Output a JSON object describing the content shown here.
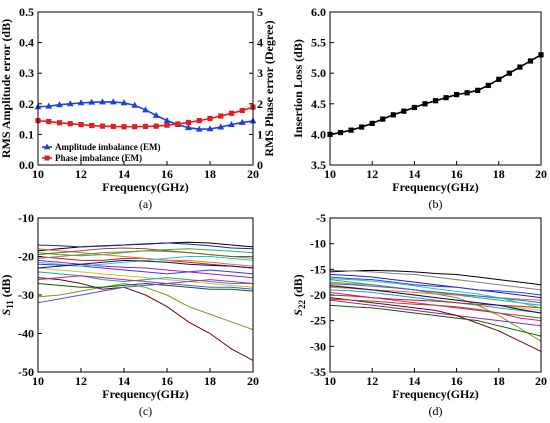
{
  "chart_data": [
    {
      "id": "a",
      "type": "line",
      "caption": "(a)",
      "xlabel": "Frequency(GHz)",
      "ylabel": "RMS Amplitude error (dB)",
      "y2label": "RMS Phase error (Degree)",
      "xlim": [
        10,
        20
      ],
      "ylim": [
        0,
        0.5
      ],
      "y2lim": [
        0,
        5
      ],
      "xticks": [
        10,
        12,
        14,
        16,
        18,
        20
      ],
      "yticks": [
        0.0,
        0.1,
        0.2,
        0.3,
        0.4,
        0.5
      ],
      "ytick_labels": [
        "0.0",
        "0.1",
        "0.2",
        "0.3",
        "0.4",
        "0.5"
      ],
      "y2ticks": [
        0,
        1,
        2,
        3,
        4,
        5
      ],
      "y2tick_labels": [
        "0",
        "1",
        "2",
        "3",
        "4",
        "5"
      ],
      "legend": "bottom-left",
      "grid": false,
      "series": [
        {
          "name": "Amplitude imbalance (EM)",
          "axis": "left",
          "color": "#1f3fe0",
          "marker": "triangle",
          "x": [
            10,
            10.5,
            11,
            11.5,
            12,
            12.5,
            13,
            13.5,
            14,
            14.5,
            15,
            15.5,
            16,
            16.5,
            17,
            17.5,
            18,
            18.5,
            19,
            19.5,
            20
          ],
          "y": [
            0.19,
            0.192,
            0.197,
            0.2,
            0.203,
            0.205,
            0.206,
            0.206,
            0.203,
            0.195,
            0.18,
            0.162,
            0.145,
            0.132,
            0.122,
            0.117,
            0.118,
            0.124,
            0.132,
            0.139,
            0.144
          ]
        },
        {
          "name": "Phase imbalance (EM)",
          "axis": "right",
          "color": "#e01f1f",
          "marker": "square",
          "x": [
            10,
            10.5,
            11,
            11.5,
            12,
            12.5,
            13,
            13.5,
            14,
            14.5,
            15,
            15.5,
            16,
            16.5,
            17,
            17.5,
            18,
            18.5,
            19,
            19.5,
            20
          ],
          "y": [
            1.45,
            1.42,
            1.38,
            1.35,
            1.32,
            1.29,
            1.27,
            1.26,
            1.25,
            1.25,
            1.26,
            1.27,
            1.3,
            1.34,
            1.39,
            1.45,
            1.52,
            1.6,
            1.69,
            1.78,
            1.89
          ]
        }
      ]
    },
    {
      "id": "b",
      "type": "line",
      "caption": "(b)",
      "xlabel": "Frequency(GHz)",
      "ylabel": "Insertion Loss (dB)",
      "xlim": [
        10,
        20
      ],
      "ylim": [
        3.5,
        6.0
      ],
      "xticks": [
        10,
        12,
        14,
        16,
        18,
        20
      ],
      "yticks": [
        3.5,
        4.0,
        4.5,
        5.0,
        5.5,
        6.0
      ],
      "ytick_labels": [
        "3.5",
        "4.0",
        "4.5",
        "5.0",
        "5.5",
        "6.0"
      ],
      "grid": false,
      "series": [
        {
          "color": "#000000",
          "marker": "square",
          "x": [
            10,
            10.5,
            11,
            11.5,
            12,
            12.5,
            13,
            13.5,
            14,
            14.5,
            15,
            15.5,
            16,
            16.5,
            17,
            17.5,
            18,
            18.5,
            19,
            19.5,
            20
          ],
          "y": [
            4.0,
            4.03,
            4.07,
            4.12,
            4.18,
            4.25,
            4.32,
            4.38,
            4.44,
            4.5,
            4.55,
            4.6,
            4.65,
            4.68,
            4.72,
            4.8,
            4.9,
            5.0,
            5.1,
            5.2,
            5.3
          ]
        }
      ]
    },
    {
      "id": "c",
      "type": "line",
      "caption": "(c)",
      "xlabel": "Frequency(GHz)",
      "ylabel_main": "S",
      "ylabel_sub": "11",
      "ylabel_unit": " (dB)",
      "xlim": [
        10,
        20
      ],
      "ylim": [
        -50,
        -10
      ],
      "xticks": [
        10,
        12,
        14,
        16,
        18,
        20
      ],
      "yticks": [
        -50,
        -40,
        -30,
        -20,
        -10
      ],
      "ytick_labels": [
        "-50",
        "-40",
        "-30",
        "-20",
        "-10"
      ],
      "grid": false,
      "x": [
        10,
        11,
        12,
        13,
        14,
        15,
        16,
        17,
        18,
        19,
        20
      ],
      "series": [
        {
          "color": "#000000",
          "values": [
            -18.5,
            -18,
            -17.5,
            -17.2,
            -17,
            -16.8,
            -16.5,
            -16.3,
            -16.5,
            -17,
            -17.5
          ]
        },
        {
          "color": "#1e22a8",
          "values": [
            -17,
            -17.2,
            -17.5,
            -17.3,
            -17,
            -16.7,
            -16.5,
            -16.8,
            -17.2,
            -17.8,
            -18
          ]
        },
        {
          "color": "#2db34a",
          "values": [
            -19,
            -19.5,
            -19.8,
            -19.5,
            -19,
            -18.5,
            -18.2,
            -18,
            -18.3,
            -18.6,
            -19
          ]
        },
        {
          "color": "#9a1fb5",
          "values": [
            -21,
            -21.5,
            -22,
            -22.5,
            -22.8,
            -23,
            -23.5,
            -24,
            -24.5,
            -25,
            -25.5
          ]
        },
        {
          "color": "#c8c81e",
          "values": [
            -23,
            -23.5,
            -24,
            -24.5,
            -25,
            -25.5,
            -26,
            -26.5,
            -27,
            -27.5,
            -28
          ]
        },
        {
          "color": "#1fa0b0",
          "values": [
            -24,
            -24.5,
            -25,
            -26,
            -26.5,
            -26,
            -25.5,
            -26,
            -26.5,
            -27,
            -27
          ]
        },
        {
          "color": "#c81e1e",
          "values": [
            -20,
            -20.5,
            -21,
            -21,
            -20.5,
            -20.5,
            -21,
            -21.5,
            -22,
            -22.5,
            -23
          ]
        },
        {
          "color": "#7a9a1e",
          "values": [
            -30.5,
            -30,
            -29,
            -28,
            -27,
            -28,
            -30,
            -33,
            -35,
            -37,
            -39
          ]
        },
        {
          "color": "#6a0a0a",
          "values": [
            -25.5,
            -26,
            -27,
            -28.5,
            -28,
            -30,
            -33,
            -37,
            -40,
            -44,
            -47
          ]
        },
        {
          "color": "#3c3ce0",
          "values": [
            -22,
            -22.2,
            -22.5,
            -23,
            -23.5,
            -24,
            -24.5,
            -24,
            -23.5,
            -24,
            -24.5
          ]
        },
        {
          "color": "#e07a1e",
          "values": [
            -18,
            -18.5,
            -19,
            -19.5,
            -20,
            -20.5,
            -21,
            -21,
            -21.5,
            -22,
            -22.5
          ]
        },
        {
          "color": "#808080",
          "values": [
            -20.5,
            -20,
            -19.5,
            -19,
            -18.8,
            -18.5,
            -18.7,
            -19,
            -19.5,
            -20,
            -20.5
          ]
        },
        {
          "color": "#d21e96",
          "values": [
            -26,
            -25.5,
            -25,
            -25.5,
            -26,
            -26.5,
            -27,
            -26.5,
            -26,
            -26.5,
            -27
          ]
        },
        {
          "color": "#0a5a0a",
          "values": [
            -27,
            -27.5,
            -28,
            -28,
            -27.5,
            -27,
            -27.5,
            -28,
            -28.5,
            -28.5,
            -29
          ]
        },
        {
          "color": "#5050ff",
          "values": [
            -32,
            -31,
            -30,
            -29,
            -28,
            -27.5,
            -27,
            -27.5,
            -28,
            -28,
            -28.5
          ]
        },
        {
          "color": "#1ec8c8",
          "values": [
            -21.5,
            -22,
            -22.5,
            -22,
            -21.5,
            -21,
            -20.5,
            -20,
            -20,
            -20.5,
            -21
          ]
        },
        {
          "color": "#8a5a1e",
          "values": [
            -19.5,
            -19,
            -18.5,
            -18,
            -17.8,
            -18,
            -18.5,
            -19,
            -19.5,
            -20,
            -20
          ]
        },
        {
          "color": "#0a0a7a",
          "values": [
            -23,
            -22.5,
            -22,
            -21.5,
            -21,
            -21.2,
            -21.5,
            -22,
            -22.3,
            -22.5,
            -23
          ]
        }
      ]
    },
    {
      "id": "d",
      "type": "line",
      "caption": "(d)",
      "xlabel": "Frequency(GHz)",
      "ylabel_main": "S",
      "ylabel_sub": "22",
      "ylabel_unit": " (dB)",
      "xlim": [
        10,
        20
      ],
      "ylim": [
        -35,
        -5
      ],
      "xticks": [
        10,
        12,
        14,
        16,
        18,
        20
      ],
      "yticks": [
        -35,
        -30,
        -25,
        -20,
        -15,
        -10,
        -5
      ],
      "ytick_labels": [
        "-35",
        "-30",
        "-25",
        "-20",
        "-15",
        "-10",
        "-5"
      ],
      "grid": false,
      "x": [
        10,
        11,
        12,
        13,
        14,
        15,
        16,
        17,
        18,
        19,
        20
      ],
      "series": [
        {
          "color": "#000000",
          "values": [
            -15.5,
            -15.3,
            -15.2,
            -15.3,
            -15.5,
            -15.8,
            -16,
            -16.5,
            -17,
            -17.5,
            -18
          ]
        },
        {
          "color": "#1e22a8",
          "values": [
            -16,
            -16.2,
            -16.5,
            -17,
            -17.5,
            -18,
            -18.5,
            -19,
            -19.5,
            -20,
            -20.5
          ]
        },
        {
          "color": "#2db34a",
          "values": [
            -17,
            -17.5,
            -18,
            -18.5,
            -19,
            -19.5,
            -20,
            -20.5,
            -21,
            -21.5,
            -22
          ]
        },
        {
          "color": "#9a1fb5",
          "values": [
            -21,
            -21.5,
            -22,
            -22.5,
            -23,
            -23.5,
            -24,
            -24.5,
            -25,
            -25.5,
            -26
          ]
        },
        {
          "color": "#c8c81e",
          "values": [
            -18,
            -18.5,
            -19,
            -19.5,
            -20,
            -20.5,
            -21,
            -21.5,
            -22,
            -22.5,
            -23
          ]
        },
        {
          "color": "#1fa0b0",
          "values": [
            -19,
            -19.2,
            -19.5,
            -20,
            -20.5,
            -21,
            -21.5,
            -22,
            -22.5,
            -23,
            -23.5
          ]
        },
        {
          "color": "#c81e1e",
          "values": [
            -20,
            -20.2,
            -20.5,
            -20.8,
            -21,
            -21.2,
            -21.5,
            -21.8,
            -22,
            -22.2,
            -22.5
          ]
        },
        {
          "color": "#7a9a1e",
          "values": [
            -17.5,
            -17.8,
            -18,
            -18.5,
            -19,
            -19.8,
            -20.5,
            -22,
            -24,
            -26.5,
            -29
          ]
        },
        {
          "color": "#6a0a0a",
          "values": [
            -20.5,
            -21,
            -21.5,
            -22,
            -22.5,
            -23,
            -24,
            -25.5,
            -27,
            -29,
            -31
          ]
        },
        {
          "color": "#3c3ce0",
          "values": [
            -16.5,
            -16.8,
            -17,
            -17.5,
            -18,
            -18.3,
            -18.5,
            -19,
            -19.2,
            -19.5,
            -20
          ]
        },
        {
          "color": "#e07a1e",
          "values": [
            -18.5,
            -18.7,
            -19,
            -19.2,
            -19.5,
            -19.8,
            -20,
            -20.2,
            -20.5,
            -20.8,
            -21
          ]
        },
        {
          "color": "#808080",
          "values": [
            -15.2,
            -15.3,
            -15.5,
            -15.8,
            -16,
            -16.5,
            -17,
            -17.5,
            -18,
            -18.5,
            -19
          ]
        },
        {
          "color": "#d21e96",
          "values": [
            -19.5,
            -20,
            -20.5,
            -21,
            -21.5,
            -22,
            -22.5,
            -23,
            -23.5,
            -24.5,
            -25
          ]
        },
        {
          "color": "#0a5a0a",
          "values": [
            -22,
            -22.3,
            -22.5,
            -23,
            -23.5,
            -24,
            -24.5,
            -25,
            -26,
            -27,
            -28
          ]
        },
        {
          "color": "#5050ff",
          "values": [
            -17.8,
            -18,
            -18.3,
            -18.6,
            -19,
            -19.4,
            -19.8,
            -20.2,
            -20.6,
            -21,
            -21.5
          ]
        },
        {
          "color": "#1ec8c8",
          "values": [
            -16.8,
            -17,
            -17.3,
            -17.7,
            -18.2,
            -18.8,
            -19.3,
            -19.8,
            -20.5,
            -21.5,
            -22.5
          ]
        },
        {
          "color": "#8a5a1e",
          "values": [
            -20.8,
            -21,
            -21.2,
            -21.5,
            -21.8,
            -22,
            -22.3,
            -22.8,
            -23.5,
            -24,
            -24.5
          ]
        },
        {
          "color": "#0a0a7a",
          "values": [
            -18.2,
            -18.6,
            -19,
            -19.5,
            -20,
            -20.5,
            -21,
            -21.5,
            -22,
            -22.8,
            -23.5
          ]
        }
      ]
    }
  ]
}
